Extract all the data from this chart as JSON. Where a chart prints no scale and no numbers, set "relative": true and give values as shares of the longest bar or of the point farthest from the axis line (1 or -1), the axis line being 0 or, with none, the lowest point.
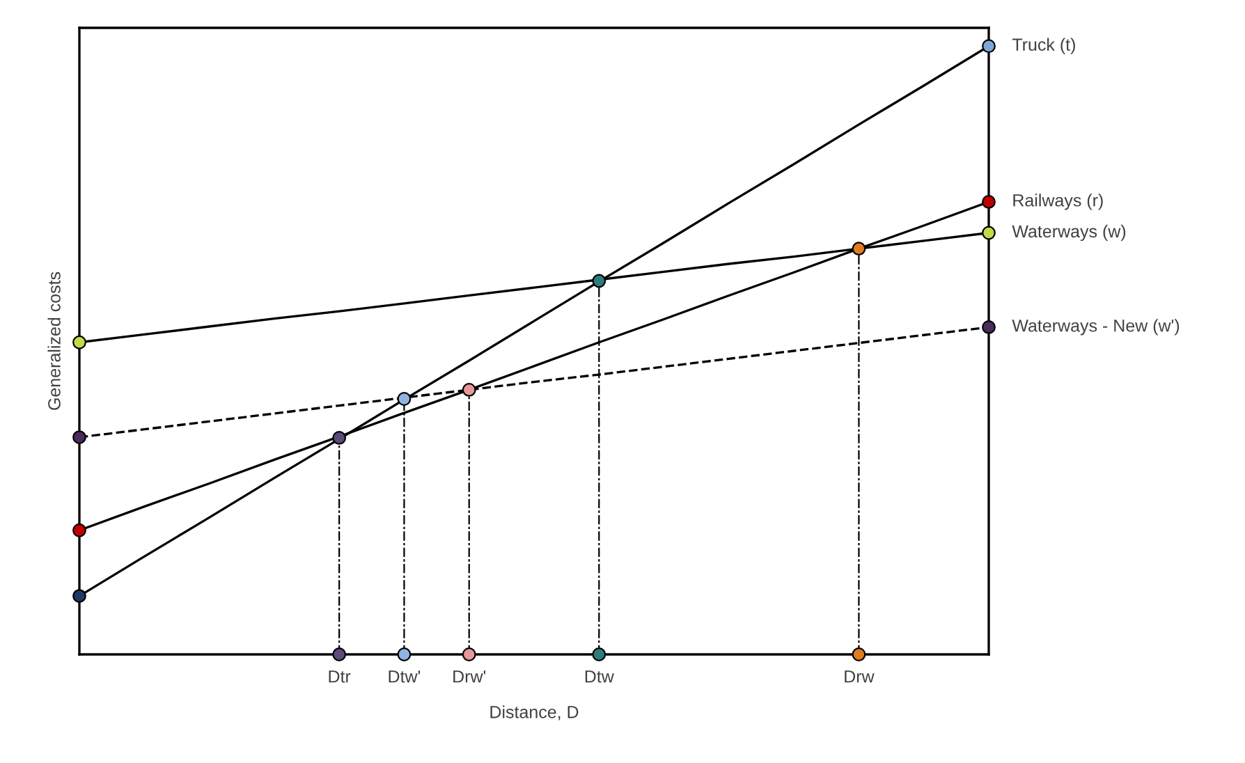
{
  "chart_data": {
    "type": "line",
    "relative": true,
    "xlabel": "Distance, D",
    "ylabel": "Generalized costs",
    "categories": [
      null,
      null,
      null,
      null,
      "Dtr",
      "Dtw'",
      "Drw'",
      null,
      "Dtw",
      null,
      null,
      null,
      "Drw",
      null,
      null
    ],
    "tick_labels": "x",
    "marker": "circle",
    "series": [
      {
        "name": "Truck (t)",
        "marker": "none",
        "color": "#000000",
        "line_style": "solid",
        "values": [
          0.096,
          0.161,
          0.225,
          0.29,
          0.354,
          0.419,
          0.483,
          0.548,
          0.613,
          0.677,
          0.742,
          0.806,
          0.871,
          0.935,
          1.0
        ]
      },
      {
        "name": "Railways (r)",
        "marker": "none",
        "color": "#000000",
        "line_style": "solid",
        "values": [
          0.204,
          0.243,
          0.281,
          0.32,
          0.358,
          0.397,
          0.435,
          0.474,
          0.513,
          0.551,
          0.59,
          0.628,
          0.667,
          0.705,
          0.744
        ]
      },
      {
        "name": "Waterways (w)",
        "marker": "none",
        "color": "#000000",
        "line_style": "solid",
        "values": [
          0.513,
          0.526,
          0.539,
          0.552,
          0.564,
          0.577,
          0.59,
          0.603,
          0.616,
          0.629,
          0.642,
          0.654,
          0.667,
          0.68,
          0.693
        ]
      },
      {
        "name": "Waterways - New (w')",
        "marker": "none",
        "color": "#000000",
        "line_style": "dashed",
        "values": [
          0.357,
          0.37,
          0.383,
          0.396,
          0.409,
          0.422,
          0.435,
          0.448,
          0.46,
          0.473,
          0.486,
          0.499,
          0.512,
          0.525,
          0.538
        ]
      },
      {
        "type": "scatter",
        "values": [
          0.096,
          null,
          null,
          null,
          null,
          null,
          null,
          null,
          null,
          null,
          null,
          null,
          null,
          null,
          1.0
        ],
        "colors": [
          "#1f3864",
          null,
          null,
          null,
          null,
          null,
          null,
          null,
          null,
          null,
          null,
          null,
          null,
          null,
          "#7fa7d9"
        ]
      },
      {
        "type": "scatter",
        "values": [
          0.204,
          null,
          null,
          null,
          null,
          null,
          null,
          null,
          null,
          null,
          null,
          null,
          null,
          null,
          0.744
        ],
        "colors": [
          "#c00000",
          null,
          null,
          null,
          null,
          null,
          null,
          null,
          null,
          null,
          null,
          null,
          null,
          null,
          "#c00000"
        ]
      },
      {
        "type": "scatter",
        "values": [
          0.513,
          null,
          null,
          null,
          null,
          null,
          null,
          null,
          null,
          null,
          null,
          null,
          null,
          null,
          0.693
        ],
        "colors": [
          "#c5d84a",
          null,
          null,
          null,
          null,
          null,
          null,
          null,
          null,
          null,
          null,
          null,
          null,
          null,
          "#c5d84a"
        ]
      },
      {
        "type": "scatter",
        "values": [
          0.357,
          null,
          null,
          null,
          null,
          null,
          null,
          null,
          null,
          null,
          null,
          null,
          null,
          null,
          0.538
        ],
        "colors": [
          "#4b2a5c",
          null,
          null,
          null,
          null,
          null,
          null,
          null,
          null,
          null,
          null,
          null,
          null,
          null,
          "#4b2a5c"
        ]
      },
      {
        "type": "lollipop",
        "line_style": "dotted",
        "values": [
          null,
          null,
          null,
          null,
          0.356,
          0.42,
          0.435,
          null,
          0.614,
          null,
          null,
          null,
          0.667,
          null,
          null
        ],
        "colors": [
          null,
          null,
          null,
          null,
          "#5b4a7a",
          "#8fb4e3",
          "#e6999b",
          null,
          "#2e7d7d",
          null,
          null,
          null,
          "#e07b20",
          null,
          null
        ]
      },
      {
        "type": "scatter",
        "values": [
          null,
          null,
          null,
          null,
          0,
          0,
          0,
          null,
          0,
          null,
          null,
          null,
          0,
          null,
          null
        ],
        "colors": [
          null,
          null,
          null,
          null,
          "#5b4a7a",
          "#8fb4e3",
          "#e6999b",
          null,
          "#2e7d7d",
          null,
          null,
          null,
          "#e07b20",
          null,
          null
        ]
      }
    ]
  }
}
